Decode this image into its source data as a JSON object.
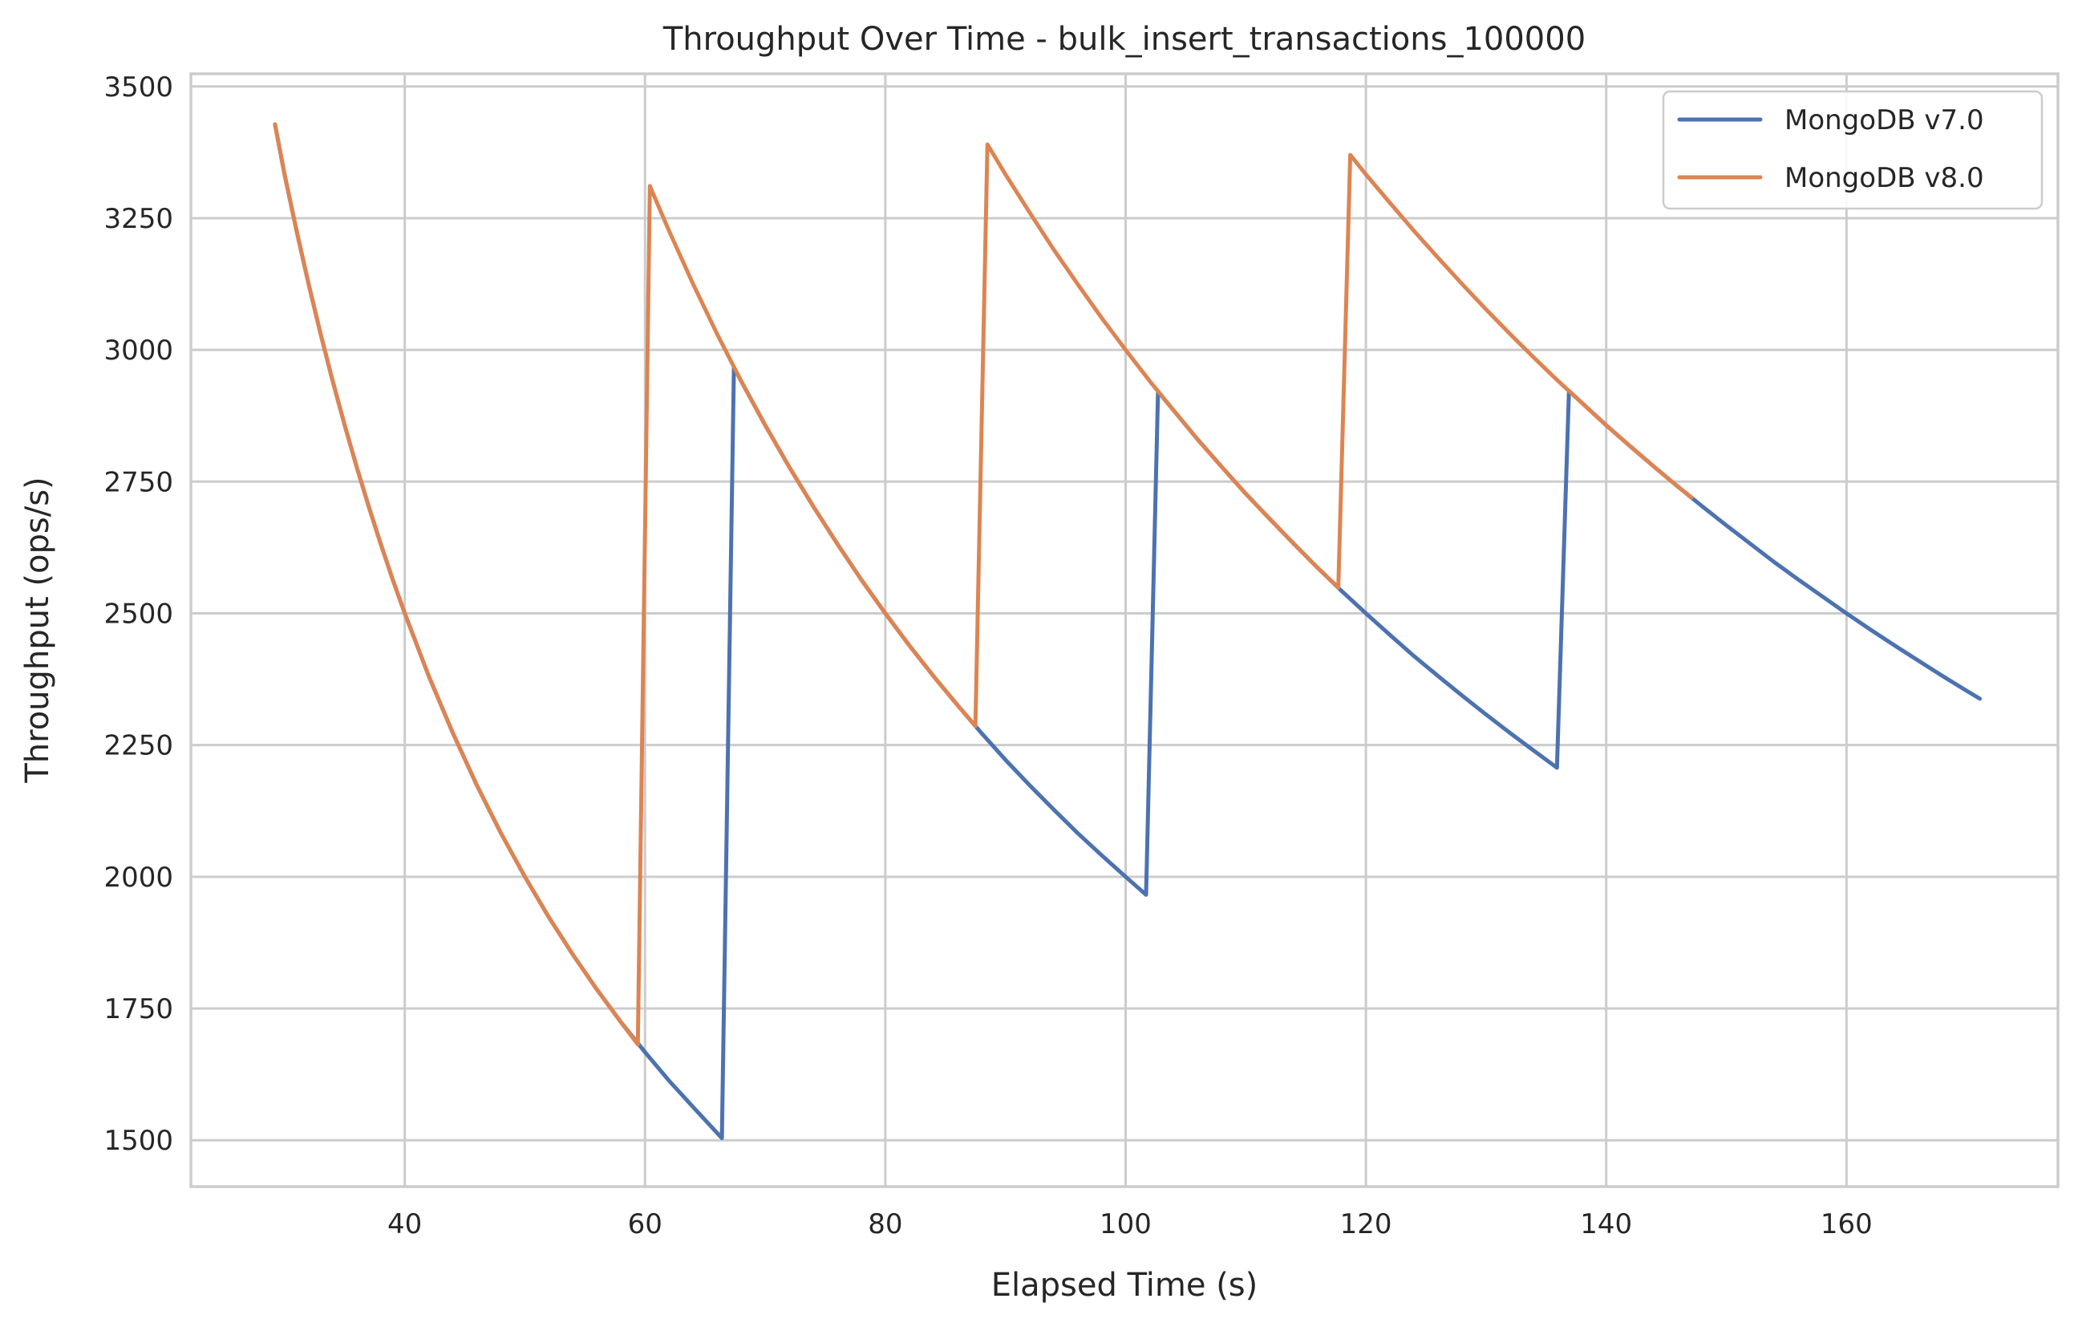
{
  "chart_data": {
    "type": "line",
    "title": "Throughput Over Time - bulk_insert_transactions_100000",
    "xlabel": "Elapsed Time (s)",
    "ylabel": "Throughput (ops/s)",
    "xlim": [
      22.2,
      177.6
    ],
    "ylim": [
      1412,
      3524
    ],
    "xticks": [
      40,
      60,
      80,
      100,
      120,
      140,
      160
    ],
    "yticks": [
      1500,
      1750,
      2000,
      2250,
      2500,
      2750,
      3000,
      3250,
      3500
    ],
    "grid": true,
    "legend_position": "upper right",
    "series": [
      {
        "name": "MongoDB v7.0",
        "color": "#4c72b0",
        "points": [
          [
            29.2,
            3428
          ],
          [
            30,
            3333
          ],
          [
            31,
            3226
          ],
          [
            32,
            3125
          ],
          [
            33,
            3030
          ],
          [
            34,
            2941
          ],
          [
            35,
            2857
          ],
          [
            36,
            2778
          ],
          [
            37,
            2703
          ],
          [
            38,
            2632
          ],
          [
            39,
            2564
          ],
          [
            40,
            2500
          ],
          [
            42,
            2381
          ],
          [
            44,
            2273
          ],
          [
            46,
            2174
          ],
          [
            48,
            2083
          ],
          [
            50,
            2000
          ],
          [
            52,
            1923
          ],
          [
            54,
            1852
          ],
          [
            56,
            1786
          ],
          [
            58,
            1724
          ],
          [
            60,
            1667
          ],
          [
            62,
            1613
          ],
          [
            64,
            1563
          ],
          [
            66.4,
            1504
          ],
          [
            67.4,
            2967
          ],
          [
            68,
            2941
          ],
          [
            70,
            2857
          ],
          [
            72,
            2778
          ],
          [
            74,
            2703
          ],
          [
            76,
            2632
          ],
          [
            78,
            2564
          ],
          [
            80,
            2500
          ],
          [
            82,
            2439
          ],
          [
            84,
            2381
          ],
          [
            86,
            2326
          ],
          [
            88,
            2273
          ],
          [
            90,
            2222
          ],
          [
            92,
            2174
          ],
          [
            94,
            2128
          ],
          [
            96,
            2083
          ],
          [
            98,
            2041
          ],
          [
            100,
            2000
          ],
          [
            101.7,
            1966
          ],
          [
            102.7,
            2921
          ],
          [
            104,
            2885
          ],
          [
            106,
            2830
          ],
          [
            108,
            2778
          ],
          [
            110,
            2727
          ],
          [
            112,
            2679
          ],
          [
            114,
            2632
          ],
          [
            116,
            2586
          ],
          [
            118,
            2542
          ],
          [
            120,
            2500
          ],
          [
            122,
            2459
          ],
          [
            124,
            2419
          ],
          [
            126,
            2381
          ],
          [
            128,
            2344
          ],
          [
            130,
            2308
          ],
          [
            132,
            2273
          ],
          [
            134,
            2239
          ],
          [
            135.9,
            2207
          ],
          [
            136.9,
            2922
          ],
          [
            138,
            2899
          ],
          [
            140,
            2857
          ],
          [
            142,
            2817
          ],
          [
            144,
            2778
          ],
          [
            146,
            2740
          ],
          [
            148,
            2703
          ],
          [
            150,
            2667
          ],
          [
            152,
            2632
          ],
          [
            154,
            2597
          ],
          [
            156,
            2564
          ],
          [
            158,
            2532
          ],
          [
            160,
            2500
          ],
          [
            162,
            2469
          ],
          [
            164,
            2439
          ],
          [
            166,
            2410
          ],
          [
            168,
            2381
          ],
          [
            170,
            2353
          ],
          [
            171.1,
            2338
          ]
        ]
      },
      {
        "name": "MongoDB v8.0",
        "color": "#dd8452",
        "points": [
          [
            29.2,
            3428
          ],
          [
            30,
            3333
          ],
          [
            31,
            3226
          ],
          [
            32,
            3125
          ],
          [
            33,
            3030
          ],
          [
            34,
            2941
          ],
          [
            35,
            2857
          ],
          [
            36,
            2778
          ],
          [
            37,
            2703
          ],
          [
            38,
            2632
          ],
          [
            39,
            2564
          ],
          [
            40,
            2500
          ],
          [
            42,
            2381
          ],
          [
            44,
            2273
          ],
          [
            46,
            2174
          ],
          [
            48,
            2083
          ],
          [
            50,
            2000
          ],
          [
            52,
            1923
          ],
          [
            54,
            1852
          ],
          [
            56,
            1786
          ],
          [
            58,
            1724
          ],
          [
            59.4,
            1682
          ],
          [
            60.4,
            3311
          ],
          [
            62,
            3226
          ],
          [
            64,
            3125
          ],
          [
            66,
            3030
          ],
          [
            68,
            2941
          ],
          [
            70,
            2857
          ],
          [
            72,
            2778
          ],
          [
            74,
            2703
          ],
          [
            76,
            2632
          ],
          [
            78,
            2564
          ],
          [
            80,
            2500
          ],
          [
            82,
            2439
          ],
          [
            84,
            2381
          ],
          [
            86,
            2326
          ],
          [
            87.5,
            2286
          ],
          [
            88.5,
            3390
          ],
          [
            90,
            3333
          ],
          [
            92,
            3261
          ],
          [
            94,
            3191
          ],
          [
            96,
            3125
          ],
          [
            98,
            3061
          ],
          [
            100,
            3000
          ],
          [
            102,
            2941
          ],
          [
            104,
            2885
          ],
          [
            106,
            2830
          ],
          [
            108,
            2778
          ],
          [
            110,
            2727
          ],
          [
            112,
            2679
          ],
          [
            114,
            2632
          ],
          [
            116,
            2586
          ],
          [
            117.7,
            2549
          ],
          [
            118.7,
            3370
          ],
          [
            120,
            3333
          ],
          [
            122,
            3279
          ],
          [
            124,
            3226
          ],
          [
            126,
            3175
          ],
          [
            128,
            3125
          ],
          [
            130,
            3077
          ],
          [
            132,
            3030
          ],
          [
            134,
            2985
          ],
          [
            136,
            2941
          ],
          [
            138,
            2899
          ],
          [
            140,
            2857
          ],
          [
            142,
            2817
          ],
          [
            144,
            2778
          ],
          [
            146,
            2740
          ],
          [
            147.1,
            2720
          ]
        ]
      }
    ]
  }
}
